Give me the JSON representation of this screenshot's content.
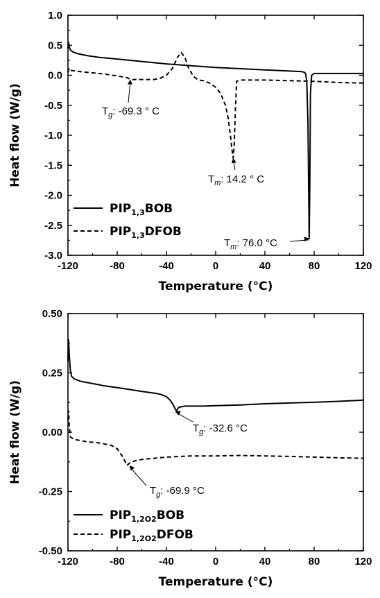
{
  "chart_data": [
    {
      "type": "line",
      "xlabel": "Temperature (°C)",
      "ylabel": "Heat flow (W/g)",
      "xlim": [
        -120,
        120
      ],
      "ylim": [
        -3.0,
        1.0
      ],
      "xticks": [
        -120,
        -80,
        -40,
        0,
        40,
        80,
        120
      ],
      "xtick_labels": [
        "-120",
        "-80",
        "-40",
        "0",
        "40",
        "80",
        "120"
      ],
      "yticks": [
        1.0,
        0.5,
        0.0,
        -0.5,
        -1.0,
        -1.5,
        -2.0,
        -2.5,
        -3.0
      ],
      "ytick_labels": [
        "1.0",
        "0.5",
        "0.0",
        "-0.5",
        "-1.0",
        "-1.5",
        "-2.0",
        "-2.5",
        "-3.0"
      ],
      "legend_position": "bottom-left",
      "series": [
        {
          "label": {
            "main": "PIP",
            "sub": "1,3",
            "tail": "BOB"
          },
          "style": "solid",
          "x": [
            -120,
            -119.5,
            -119,
            -118,
            -116,
            -112,
            -105,
            -95,
            -80,
            -60,
            -40,
            -20,
            0,
            20,
            40,
            60,
            70,
            72,
            73,
            74,
            75,
            75.5,
            76,
            76.5,
            77,
            78,
            80,
            90,
            100,
            110,
            120
          ],
          "y": [
            0.45,
            0.55,
            0.48,
            0.42,
            0.39,
            0.36,
            0.33,
            0.3,
            0.27,
            0.23,
            0.19,
            0.16,
            0.13,
            0.11,
            0.09,
            0.07,
            0.06,
            0.05,
            0.03,
            -0.1,
            -0.8,
            -1.8,
            -2.72,
            -1.8,
            -0.3,
            0.0,
            0.03,
            0.03,
            0.03,
            0.03,
            0.03
          ]
        },
        {
          "label": {
            "main": "PIP",
            "sub": "1,3",
            "tail": "DFOB"
          },
          "style": "dashed",
          "x": [
            -120,
            -119,
            -117,
            -110,
            -100,
            -90,
            -80,
            -72,
            -69,
            -60,
            -50,
            -45,
            -40,
            -35,
            -31,
            -28,
            -25,
            -22,
            -18,
            -14,
            -10,
            -5,
            0,
            4,
            8,
            10,
            12,
            13,
            14.2,
            15,
            16,
            17,
            20,
            30,
            40,
            60,
            80,
            100,
            120
          ],
          "y": [
            0.05,
            0.12,
            0.08,
            0.06,
            0.04,
            0.02,
            -0.01,
            -0.04,
            -0.07,
            -0.07,
            -0.07,
            -0.05,
            0.0,
            0.12,
            0.3,
            0.38,
            0.3,
            0.12,
            -0.02,
            -0.08,
            -0.09,
            -0.13,
            -0.2,
            -0.3,
            -0.5,
            -0.7,
            -1.0,
            -1.2,
            -1.38,
            -1.2,
            -0.6,
            -0.1,
            -0.08,
            -0.08,
            -0.08,
            -0.09,
            -0.1,
            -0.12,
            -0.13
          ]
        }
      ],
      "annotations": [
        {
          "base": "T",
          "sub": "g",
          "text": ": -69.3 ° C",
          "x": -69.3,
          "y": -0.07
        },
        {
          "base": "T",
          "sub": "m",
          "text": ": 14.2 ° C",
          "x": 14.2,
          "y": -1.38
        },
        {
          "base": "T",
          "sub": "m",
          "text": ": 76.0 °C",
          "x": 76.0,
          "y": -2.72
        }
      ]
    },
    {
      "type": "line",
      "xlabel": "Temperature (°C)",
      "ylabel": "Heat flow (W/g)",
      "xlim": [
        -120,
        120
      ],
      "ylim": [
        -0.5,
        0.5
      ],
      "xticks": [
        -120,
        -80,
        -40,
        0,
        40,
        80,
        120
      ],
      "xtick_labels": [
        "-120",
        "-80",
        "-40",
        "0",
        "40",
        "80",
        "120"
      ],
      "yticks": [
        0.5,
        0.25,
        0.0,
        -0.25,
        -0.5
      ],
      "ytick_labels": [
        "0.50",
        "0.25",
        "0.00",
        "-0.25",
        "-0.50"
      ],
      "legend_position": "bottom-left",
      "series": [
        {
          "label": {
            "main": "PIP",
            "sub": "1,2O2",
            "tail": "BOB"
          },
          "style": "solid",
          "x": [
            -120,
            -119.5,
            -119,
            -118,
            -117,
            -115,
            -110,
            -100,
            -90,
            -80,
            -70,
            -60,
            -50,
            -45,
            -40,
            -37,
            -35,
            -33,
            -32,
            -30,
            -25,
            -10,
            0,
            20,
            40,
            60,
            80,
            100,
            120
          ],
          "y": [
            0.3,
            0.39,
            0.33,
            0.26,
            0.235,
            0.225,
            0.215,
            0.205,
            0.195,
            0.188,
            0.18,
            0.172,
            0.165,
            0.16,
            0.15,
            0.135,
            0.12,
            0.1,
            0.09,
            0.105,
            0.11,
            0.11,
            0.112,
            0.115,
            0.12,
            0.123,
            0.126,
            0.13,
            0.135
          ]
        },
        {
          "label": {
            "main": "PIP",
            "sub": "1,2O2",
            "tail": "DFOB"
          },
          "style": "dashed",
          "x": [
            -120,
            -119.5,
            -119,
            -118,
            -115,
            -105,
            -95,
            -85,
            -80,
            -76,
            -74,
            -72,
            -70,
            -68,
            -65,
            -60,
            -50,
            -40,
            -20,
            0,
            20,
            40,
            60,
            80,
            100,
            120
          ],
          "y": [
            0.05,
            0.09,
            0.03,
            -0.02,
            -0.03,
            -0.04,
            -0.045,
            -0.055,
            -0.07,
            -0.1,
            -0.12,
            -0.14,
            -0.13,
            -0.125,
            -0.12,
            -0.115,
            -0.11,
            -0.105,
            -0.1,
            -0.1,
            -0.098,
            -0.1,
            -0.102,
            -0.105,
            -0.108,
            -0.11
          ]
        }
      ],
      "annotations": [
        {
          "base": "T",
          "sub": "g",
          "text": ": -32.6 °C",
          "x": -32.6,
          "y": 0.09
        },
        {
          "base": "T",
          "sub": "g",
          "text": ": -69.9 °C",
          "x": -69.9,
          "y": -0.14
        }
      ]
    }
  ]
}
